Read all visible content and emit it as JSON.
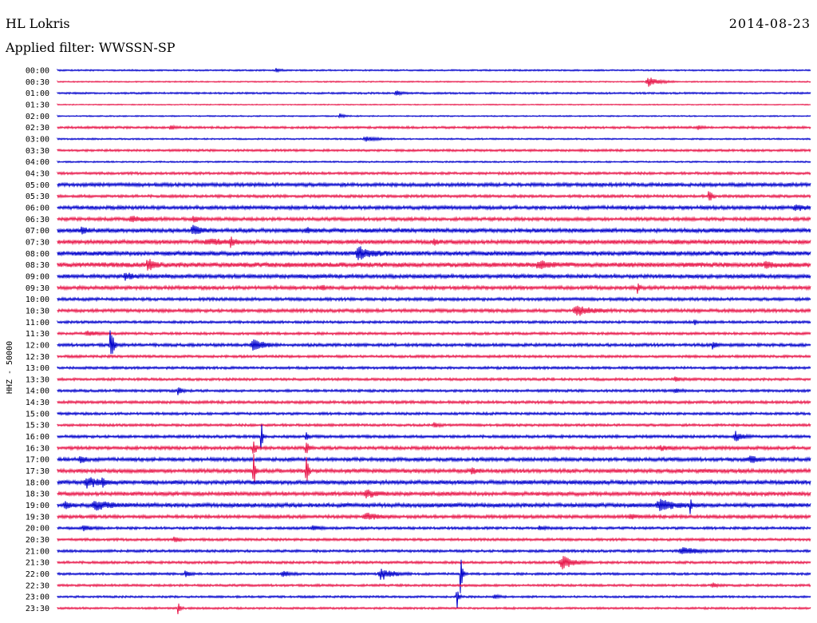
{
  "header": {
    "station": "HL Lokris",
    "date": "2014-08-23",
    "filter": "Applied filter: WWSSN-SP"
  },
  "chart_data": {
    "type": "line",
    "title": "HL Lokris",
    "ylabel": "HHZ - 50000",
    "row_labels": [
      "00:00",
      "00:30",
      "01:00",
      "01:30",
      "02:00",
      "02:30",
      "03:00",
      "03:30",
      "04:00",
      "04:30",
      "05:00",
      "05:30",
      "06:00",
      "06:30",
      "07:00",
      "07:30",
      "08:00",
      "08:30",
      "09:00",
      "09:30",
      "10:00",
      "10:30",
      "11:00",
      "11:30",
      "12:00",
      "12:30",
      "13:00",
      "13:30",
      "14:00",
      "14:30",
      "15:00",
      "15:30",
      "16:00",
      "16:30",
      "17:00",
      "17:30",
      "18:00",
      "18:30",
      "19:00",
      "19:30",
      "20:00",
      "20:30",
      "21:00",
      "21:30",
      "22:00",
      "22:30",
      "23:00",
      "23:30"
    ],
    "colors": [
      "#0000cc",
      "#e8174a"
    ],
    "noise_levels": [
      0.6,
      0.5,
      0.7,
      0.4,
      0.5,
      0.9,
      0.6,
      0.9,
      0.6,
      1.0,
      1.4,
      1.1,
      1.4,
      1.3,
      1.6,
      1.6,
      1.7,
      1.9,
      1.5,
      1.4,
      1.2,
      1.3,
      1.0,
      1.0,
      1.2,
      1.0,
      1.0,
      1.0,
      1.0,
      1.1,
      1.0,
      1.0,
      1.1,
      1.3,
      1.4,
      1.5,
      1.6,
      1.5,
      1.6,
      1.3,
      1.0,
      1.0,
      1.0,
      1.0,
      0.9,
      0.9,
      0.8,
      0.8
    ],
    "events": [
      [
        [
          0.29,
          3,
          8
        ]
      ],
      [
        [
          0.785,
          6,
          25
        ]
      ],
      [
        [
          0.45,
          3,
          12
        ]
      ],
      [],
      [
        [
          0.375,
          3,
          10
        ]
      ],
      [
        [
          0.15,
          3,
          10
        ],
        [
          0.85,
          3,
          8
        ]
      ],
      [
        [
          0.41,
          3,
          25
        ]
      ],
      [],
      [],
      [],
      [],
      [
        [
          0.865,
          10,
          6
        ]
      ],
      [
        [
          0.98,
          4,
          20
        ]
      ],
      [
        [
          0.1,
          3,
          30
        ],
        [
          0.18,
          4,
          10
        ]
      ],
      [
        [
          0.032,
          6,
          8
        ],
        [
          0.18,
          7,
          15
        ],
        [
          0.33,
          3,
          10
        ]
      ],
      [
        [
          0.23,
          6,
          8
        ],
        [
          0.2,
          3,
          35
        ],
        [
          0.5,
          3,
          10
        ],
        [
          0.82,
          3,
          10
        ]
      ],
      [
        [
          0.4,
          9,
          25
        ]
      ],
      [
        [
          0.12,
          9,
          12
        ],
        [
          0.64,
          4,
          25
        ],
        [
          0.94,
          4,
          15
        ]
      ],
      [
        [
          0.09,
          5,
          15
        ]
      ],
      [
        [
          0.77,
          9,
          4
        ],
        [
          0.35,
          3,
          10
        ]
      ],
      [],
      [
        [
          0.69,
          7,
          30
        ]
      ],
      [
        [
          0.845,
          6,
          4
        ]
      ],
      [
        [
          0.04,
          3,
          20
        ]
      ],
      [
        [
          0.07,
          28,
          6
        ],
        [
          0.26,
          9,
          20
        ],
        [
          0.87,
          7,
          8
        ]
      ],
      [],
      [],
      [
        [
          0.82,
          3,
          10
        ]
      ],
      [
        [
          0.16,
          9,
          6
        ],
        [
          0.82,
          3,
          10
        ]
      ],
      [],
      [],
      [
        [
          0.5,
          3,
          10
        ]
      ],
      [
        [
          0.27,
          30,
          3
        ],
        [
          0.33,
          10,
          4
        ],
        [
          0.9,
          6,
          15
        ]
      ],
      [
        [
          0.26,
          14,
          5
        ],
        [
          0.33,
          10,
          6
        ],
        [
          0.8,
          3,
          20
        ]
      ],
      [
        [
          0.03,
          5,
          10
        ],
        [
          0.92,
          5,
          15
        ]
      ],
      [
        [
          0.26,
          30,
          4
        ],
        [
          0.33,
          28,
          4
        ],
        [
          0.55,
          5,
          10
        ]
      ],
      [
        [
          0.04,
          7,
          25
        ],
        [
          0.06,
          5,
          6
        ]
      ],
      [
        [
          0.41,
          4,
          25
        ]
      ],
      [
        [
          0.01,
          6,
          10
        ],
        [
          0.05,
          6,
          30
        ],
        [
          0.8,
          7,
          30
        ],
        [
          0.84,
          9,
          5
        ]
      ],
      [
        [
          0.41,
          4,
          25
        ],
        [
          0.76,
          3,
          10
        ]
      ],
      [
        [
          0.035,
          3,
          15
        ],
        [
          0.34,
          3,
          15
        ],
        [
          0.64,
          3,
          12
        ]
      ],
      [
        [
          0.155,
          4,
          10
        ]
      ],
      [
        [
          0.83,
          5,
          30
        ]
      ],
      [
        [
          0.67,
          9,
          25
        ]
      ],
      [
        [
          0.17,
          5,
          8
        ],
        [
          0.3,
          4,
          15
        ],
        [
          0.43,
          8,
          25
        ],
        [
          0.535,
          30,
          4
        ]
      ],
      [
        [
          0.87,
          3,
          10
        ]
      ],
      [
        [
          0.53,
          20,
          4
        ],
        [
          0.58,
          3,
          10
        ]
      ],
      [
        [
          0.16,
          8,
          5
        ]
      ]
    ]
  }
}
